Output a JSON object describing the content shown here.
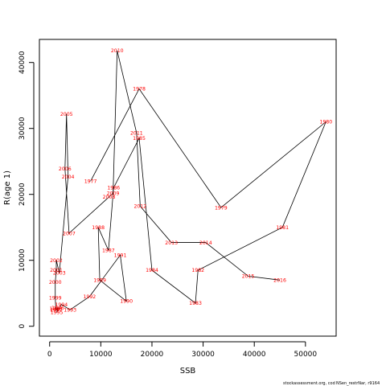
{
  "chart_data": {
    "type": "scatter",
    "xlabel": "SSB",
    "ylabel": "R(age 1)",
    "xlim": [
      -2000,
      56000
    ],
    "ylim": [
      -1500,
      43500
    ],
    "xticks": [
      0,
      10000,
      20000,
      30000,
      40000,
      50000
    ],
    "yticks": [
      0,
      10000,
      20000,
      30000,
      40000
    ],
    "grid": false,
    "connected": true,
    "point_color": "#ff0000",
    "line_color": "#000000",
    "points": [
      {
        "label": "1977",
        "x": 8000,
        "y": 22000
      },
      {
        "label": "1978",
        "x": 17500,
        "y": 36000
      },
      {
        "label": "1979",
        "x": 33500,
        "y": 18000
      },
      {
        "label": "1980",
        "x": 54000,
        "y": 31000
      },
      {
        "label": "1981",
        "x": 45500,
        "y": 15000
      },
      {
        "label": "1982",
        "x": 29000,
        "y": 8500
      },
      {
        "label": "1983",
        "x": 28500,
        "y": 3500
      },
      {
        "label": "1984",
        "x": 20000,
        "y": 8500
      },
      {
        "label": "1985",
        "x": 17500,
        "y": 28500
      },
      {
        "label": "1986",
        "x": 12500,
        "y": 21000
      },
      {
        "label": "1987",
        "x": 11500,
        "y": 11500
      },
      {
        "label": "1988",
        "x": 9500,
        "y": 15000
      },
      {
        "label": "1989",
        "x": 9800,
        "y": 7000
      },
      {
        "label": "1990",
        "x": 15000,
        "y": 3800
      },
      {
        "label": "1991",
        "x": 13800,
        "y": 10800
      },
      {
        "label": "1992",
        "x": 7800,
        "y": 4500
      },
      {
        "label": "1993",
        "x": 4000,
        "y": 2500
      },
      {
        "label": "1994",
        "x": 2300,
        "y": 3300
      },
      {
        "label": "1995",
        "x": 1400,
        "y": 2100
      },
      {
        "label": "1996",
        "x": 1600,
        "y": 2800
      },
      {
        "label": "1997",
        "x": 1300,
        "y": 2500
      },
      {
        "label": "1998",
        "x": 1200,
        "y": 2700
      },
      {
        "label": "1999",
        "x": 1100,
        "y": 4300
      },
      {
        "label": "2000",
        "x": 1100,
        "y": 6700
      },
      {
        "label": "2001",
        "x": 1300,
        "y": 8500
      },
      {
        "label": "2002",
        "x": 1300,
        "y": 10000
      },
      {
        "label": "2003",
        "x": 1900,
        "y": 8100
      },
      {
        "label": "2004",
        "x": 3600,
        "y": 22700
      },
      {
        "label": "2005",
        "x": 3300,
        "y": 32200
      },
      {
        "label": "2006",
        "x": 3000,
        "y": 23900
      },
      {
        "label": "2007",
        "x": 3800,
        "y": 14100
      },
      {
        "label": "2008",
        "x": 11600,
        "y": 19600
      },
      {
        "label": "2009",
        "x": 12400,
        "y": 20200
      },
      {
        "label": "2010",
        "x": 13200,
        "y": 41800
      },
      {
        "label": "2011",
        "x": 17000,
        "y": 29300
      },
      {
        "label": "2012",
        "x": 17700,
        "y": 18200
      },
      {
        "label": "2013",
        "x": 23800,
        "y": 12700
      },
      {
        "label": "2014",
        "x": 30500,
        "y": 12700
      },
      {
        "label": "2015",
        "x": 38800,
        "y": 7600
      },
      {
        "label": "2016",
        "x": 45000,
        "y": 7000
      }
    ]
  },
  "footer": {
    "left": "stockassessment.org, cod",
    "right": "NSen_restrNar, r9164"
  }
}
